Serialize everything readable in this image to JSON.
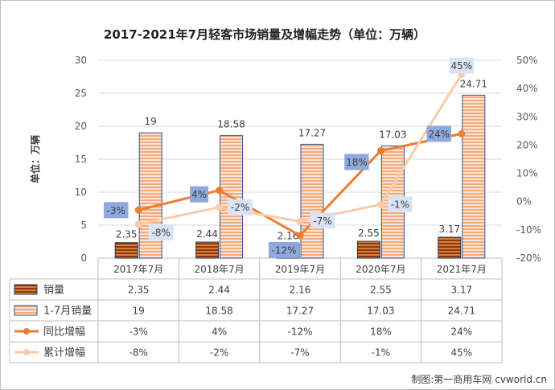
{
  "chart_data": {
    "type": "combo-bar-line-table",
    "title": "2017-2021年7月轻客市场销量及增幅走势（单位：万辆）",
    "ylabel": "单位：万辆",
    "ylim": [
      0,
      30
    ],
    "yticks": [
      "0",
      "5",
      "10",
      "15",
      "20",
      "25",
      "30"
    ],
    "y2lim": [
      -20,
      50
    ],
    "y2ticks": [
      "-20%",
      "-10%",
      "0%",
      "10%",
      "20%",
      "30%",
      "40%",
      "50%"
    ],
    "categories": [
      "2017年7月",
      "2018年7月",
      "2019年7月",
      "2020年7月",
      "2021年7月"
    ],
    "series": [
      {
        "name": "销量",
        "type": "bar",
        "axis": "left",
        "values": [
          2.35,
          2.44,
          2.16,
          2.55,
          3.17
        ],
        "labels": [
          "2.35",
          "2.44",
          "2.16",
          "2.55",
          "3.17"
        ],
        "color": "#c55a11"
      },
      {
        "name": "1-7月销量",
        "type": "bar",
        "axis": "left",
        "values": [
          19,
          18.58,
          17.27,
          17.03,
          24.71
        ],
        "labels": [
          "19",
          "18.58",
          "17.27",
          "17.03",
          "24.71"
        ],
        "color": "#f4b183"
      },
      {
        "name": "同比增幅",
        "type": "line",
        "axis": "right",
        "values": [
          -3,
          4,
          -12,
          18,
          24
        ],
        "labels": [
          "-3%",
          "4%",
          "-12%",
          "18%",
          "24%"
        ],
        "color": "#ed7d31"
      },
      {
        "name": "累计增幅",
        "type": "line",
        "axis": "right",
        "values": [
          -8,
          -2,
          -7,
          -1,
          45
        ],
        "labels": [
          "-8%",
          "-2%",
          "-7%",
          "-1%",
          "45%"
        ],
        "color": "#f8cbad"
      }
    ],
    "footer": "制图:第一商用车网 cvworld.cn"
  }
}
